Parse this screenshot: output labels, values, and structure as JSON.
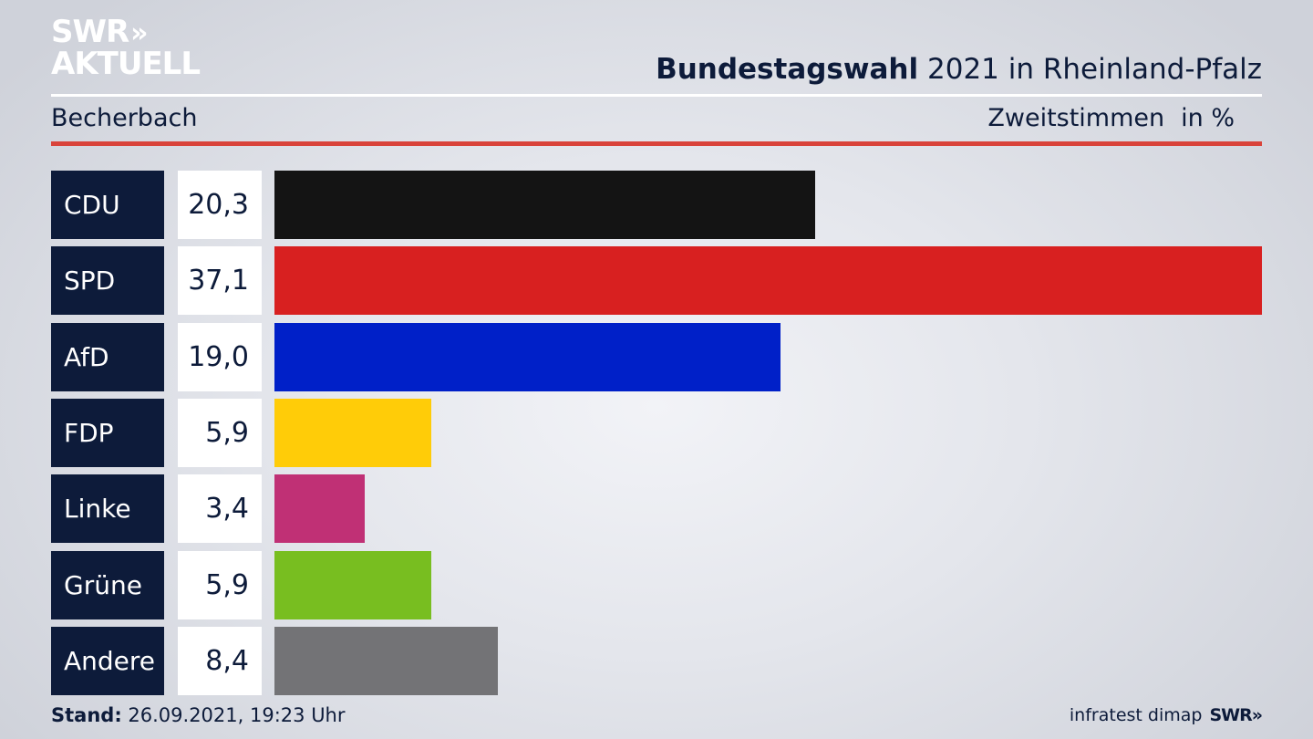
{
  "brand": {
    "line1": "SWR",
    "chevrons": "»",
    "line2": "AKTUELL",
    "footer_logo": "SWR»"
  },
  "header": {
    "title_bold": "Bundestagswahl",
    "title_rest": "2021 in Rheinland-Pfalz",
    "location": "Becherbach",
    "measure": "Zweitstimmen",
    "unit": "in %"
  },
  "footer": {
    "stand_label": "Stand:",
    "stand_value": "26.09.2021, 19:23 Uhr",
    "source": "infratest dimap"
  },
  "colors": {
    "navy": "#0d1b3a",
    "accent_red": "#d9433a"
  },
  "chart_data": {
    "type": "bar",
    "orientation": "horizontal",
    "categories": [
      "CDU",
      "SPD",
      "AfD",
      "FDP",
      "Linke",
      "Grüne",
      "Andere"
    ],
    "values": [
      20.3,
      37.1,
      19.0,
      5.9,
      3.4,
      5.9,
      8.4
    ],
    "value_labels": [
      "20,3",
      "37,1",
      "19,0",
      "5,9",
      "3,4",
      "5,9",
      "8,4"
    ],
    "colors": [
      "#141414",
      "#d82020",
      "#0020c8",
      "#ffcc08",
      "#c03075",
      "#78be20",
      "#737376"
    ],
    "xlim": [
      0,
      37.1
    ]
  }
}
